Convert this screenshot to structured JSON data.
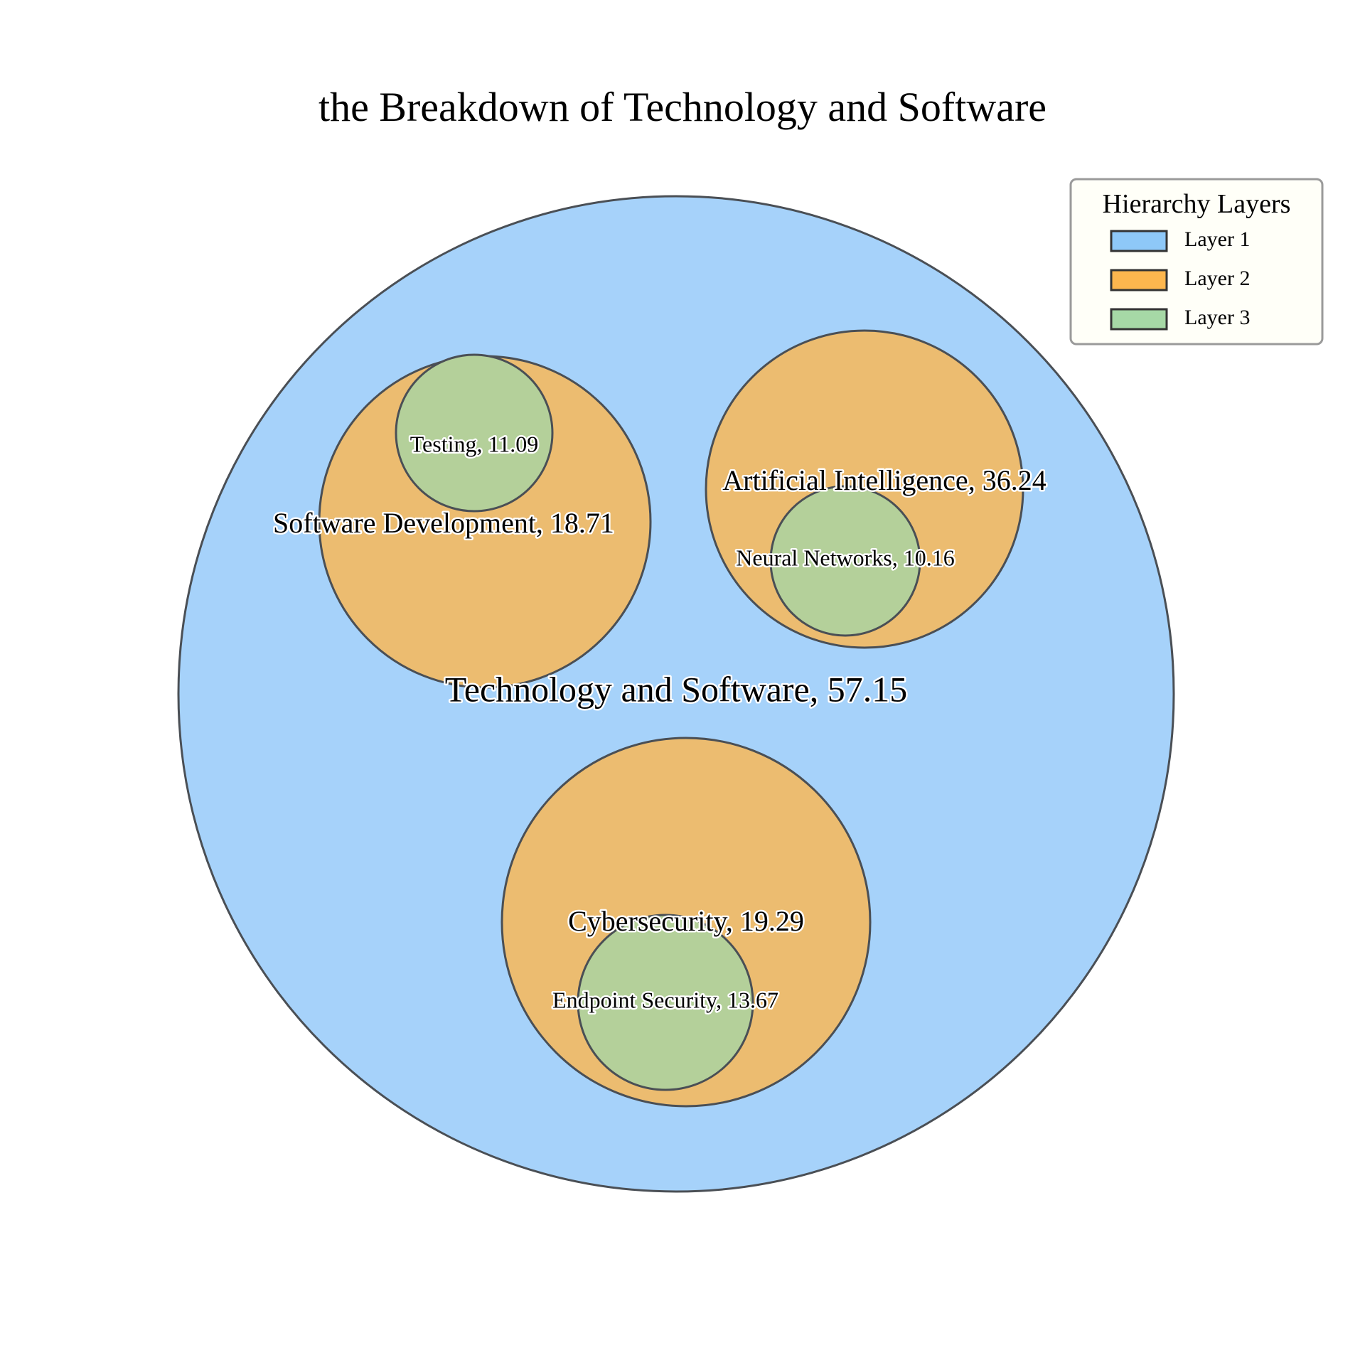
{
  "chart_data": {
    "type": "circle-packing",
    "title": "the Breakdown of Technology and Software",
    "nodes": [
      {
        "id": "root",
        "label": "Technology and Software, 57.15",
        "name": "Technology and Software",
        "value": 57.15,
        "layer": 1
      },
      {
        "id": "sw",
        "label": "Software Development, 18.71",
        "name": "Software Development",
        "value": 18.71,
        "layer": 2,
        "parent": "root"
      },
      {
        "id": "ai",
        "label": "Artificial Intelligence, 36.24",
        "name": "Artificial Intelligence",
        "value": 36.24,
        "layer": 2,
        "parent": "root"
      },
      {
        "id": "cs",
        "label": "Cybersecurity, 19.29",
        "name": "Cybersecurity",
        "value": 19.29,
        "layer": 2,
        "parent": "root"
      },
      {
        "id": "test",
        "label": "Testing, 11.09",
        "name": "Testing",
        "value": 11.09,
        "layer": 3,
        "parent": "sw"
      },
      {
        "id": "nn",
        "label": "Neural Networks, 10.16",
        "name": "Neural Networks",
        "value": 10.16,
        "layer": 3,
        "parent": "ai"
      },
      {
        "id": "es",
        "label": "Endpoint Security, 13.67",
        "name": "Endpoint Security",
        "value": 13.67,
        "layer": 3,
        "parent": "cs"
      }
    ],
    "legend": {
      "title": "Hierarchy Layers",
      "placement": "top-right",
      "items": [
        {
          "label": "Layer 1",
          "color": "#8ec8f8"
        },
        {
          "label": "Layer 2",
          "color": "#fdb64e"
        },
        {
          "label": "Layer 3",
          "color": "#a6d8a6"
        }
      ]
    },
    "colors": {
      "layer1_fill": "#a6d2fa",
      "layer2_fill": "#ecbc70",
      "layer3_fill": "#b4d09a",
      "edge": "#4a4f55"
    }
  }
}
